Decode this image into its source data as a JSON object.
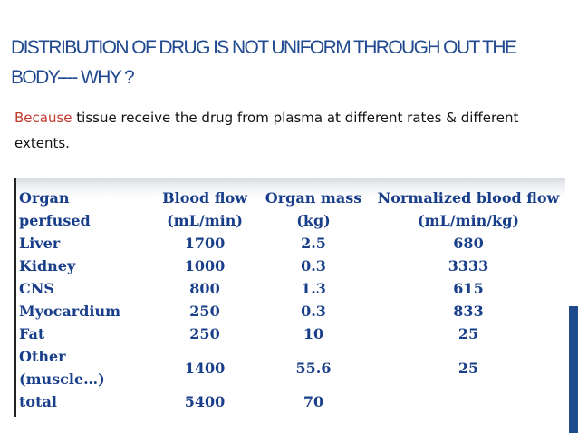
{
  "slide": {
    "title": "Distribution of drug is not uniform through out the body---- why ?",
    "intro_lead": "Because",
    "intro_rest": " tissue receive the drug from plasma at different rates & different extents."
  },
  "table": {
    "headers": [
      [
        "Organ",
        "perfused"
      ],
      [
        "Blood flow",
        "(mL/min)"
      ],
      [
        "Organ mass",
        "(kg)"
      ],
      [
        "Normalized blood flow",
        "(mL/min/kg)"
      ]
    ],
    "rows": [
      [
        "Liver",
        "1700",
        "2.5",
        "680"
      ],
      [
        "Kidney",
        "1000",
        "0.3",
        "3333"
      ],
      [
        "CNS",
        "800",
        "1.3",
        "615"
      ],
      [
        "Myocardium",
        "250",
        "0.3",
        "833"
      ],
      [
        "Fat",
        "250",
        "10",
        "25"
      ],
      [
        "Other (muscle…)",
        "1400",
        "55.6",
        "25"
      ],
      [
        "total",
        "5400",
        "70",
        ""
      ]
    ]
  },
  "colors": {
    "title": "#20498f",
    "accent": "#c0392b",
    "table_text": "#1a3f8a",
    "side_bar": "#1f4a8c"
  }
}
